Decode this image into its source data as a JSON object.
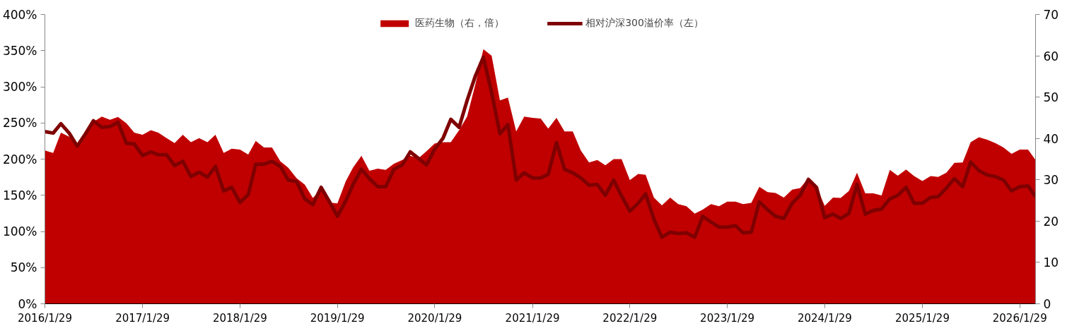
{
  "chart_data": {
    "type": "line",
    "x": [
      "2016-01",
      "2016-02",
      "2016-03",
      "2016-04",
      "2016-05",
      "2016-06",
      "2016-07",
      "2016-08",
      "2016-09",
      "2016-10",
      "2016-11",
      "2016-12",
      "2017-01",
      "2017-02",
      "2017-03",
      "2017-04",
      "2017-05",
      "2017-06",
      "2017-07",
      "2017-08",
      "2017-09",
      "2017-10",
      "2017-11",
      "2017-12",
      "2018-01",
      "2018-02",
      "2018-03",
      "2018-04",
      "2018-05",
      "2018-06",
      "2018-07",
      "2018-08",
      "2018-09",
      "2018-10",
      "2018-11",
      "2018-12",
      "2019-01",
      "2019-02",
      "2019-03",
      "2019-04",
      "2019-05",
      "2019-06",
      "2019-07",
      "2019-08",
      "2019-09",
      "2019-10",
      "2019-11",
      "2019-12",
      "2020-01",
      "2020-02",
      "2020-03",
      "2020-04",
      "2020-05",
      "2020-06",
      "2020-07",
      "2020-08",
      "2020-09",
      "2020-10",
      "2020-11",
      "2020-12",
      "2021-01",
      "2021-02",
      "2021-03",
      "2021-04",
      "2021-05",
      "2021-06",
      "2021-07",
      "2021-08",
      "2021-09",
      "2021-10",
      "2021-11",
      "2021-12",
      "2022-01",
      "2022-02",
      "2022-03",
      "2022-04",
      "2022-05",
      "2022-06",
      "2022-07",
      "2022-08",
      "2022-09",
      "2022-10",
      "2022-11",
      "2022-12",
      "2023-01",
      "2023-02",
      "2023-03",
      "2023-04",
      "2023-05",
      "2023-06",
      "2023-07",
      "2023-08",
      "2023-09",
      "2023-10",
      "2023-11",
      "2023-12",
      "2024-01",
      "2024-02",
      "2024-03",
      "2024-04",
      "2024-05",
      "2024-06",
      "2024-07",
      "2024-08",
      "2024-09",
      "2024-10",
      "2024-11",
      "2024-12",
      "2025-01",
      "2025-02",
      "2025-03",
      "2025-04",
      "2025-05",
      "2025-06",
      "2025-07",
      "2025-08",
      "2025-09",
      "2025-10",
      "2025-11",
      "2025-12",
      "2026-01",
      "2026-02",
      "2026-03"
    ],
    "series": [
      {
        "name": "医药生物（右，倍）",
        "type": "area",
        "axis": "y2",
        "color": "#c00000",
        "values": [
          37.1,
          36.5,
          41.4,
          40.4,
          38.8,
          41.4,
          44.0,
          45.3,
          44.5,
          45.2,
          43.7,
          41.4,
          40.9,
          42.0,
          41.4,
          40.1,
          38.9,
          40.9,
          39.1,
          40.1,
          39.1,
          40.9,
          36.5,
          37.5,
          37.3,
          36.1,
          39.4,
          37.8,
          37.8,
          34.5,
          32.9,
          30.4,
          28.8,
          25.6,
          27.6,
          24.5,
          24.3,
          29.6,
          33.0,
          35.8,
          32.2,
          32.7,
          32.4,
          33.9,
          34.8,
          35.8,
          35.2,
          36.9,
          38.8,
          39.1,
          39.1,
          42.0,
          45.3,
          53.1,
          61.6,
          60.0,
          49.2,
          49.9,
          41.7,
          45.3,
          45.0,
          44.8,
          42.4,
          45.0,
          41.7,
          41.7,
          37.1,
          34.2,
          34.8,
          33.5,
          35.0,
          35.0,
          29.9,
          31.4,
          31.2,
          25.7,
          23.8,
          25.7,
          24.1,
          23.6,
          21.8,
          22.8,
          24.1,
          23.6,
          24.7,
          24.7,
          24.1,
          24.4,
          28.3,
          27.0,
          26.8,
          25.7,
          27.6,
          28.0,
          30.4,
          28.3,
          23.7,
          25.7,
          25.6,
          27.3,
          31.7,
          26.7,
          26.7,
          26.2,
          32.4,
          31.0,
          32.5,
          30.9,
          29.7,
          30.9,
          30.7,
          31.7,
          34.1,
          34.2,
          39.1,
          40.3,
          39.7,
          38.9,
          37.8,
          36.3,
          37.3,
          37.3,
          34.8
        ]
      },
      {
        "name": "相对沪深300溢价率（左）",
        "color": "#7f0000",
        "values": [
          238,
          236,
          249,
          236,
          218,
          235,
          253,
          244,
          245,
          251,
          222,
          221,
          205,
          210,
          206,
          206,
          191,
          197,
          176,
          182,
          175,
          190,
          156,
          161,
          140,
          151,
          193,
          193,
          197,
          190,
          171,
          169,
          145,
          137,
          161,
          142,
          121,
          142,
          165,
          186,
          173,
          162,
          162,
          186,
          192,
          210,
          201,
          192,
          214,
          229,
          255,
          244,
          281,
          315,
          341,
          292,
          235,
          248,
          171,
          181,
          174,
          174,
          179,
          223,
          186,
          181,
          174,
          164,
          165,
          150,
          171,
          149,
          128,
          139,
          152,
          117,
          92,
          99,
          97,
          98,
          92,
          121,
          113,
          106,
          106,
          108,
          98,
          99,
          141,
          130,
          121,
          118,
          139,
          150,
          172,
          161,
          119,
          124,
          118,
          125,
          165,
          124,
          129,
          131,
          145,
          150,
          161,
          139,
          139,
          147,
          148,
          160,
          173,
          162,
          196,
          184,
          178,
          176,
          171,
          156,
          162,
          163,
          148
        ]
      }
    ],
    "xlim": [
      "2016-01",
      "2026-03"
    ],
    "xticks": [
      {
        "value": "2016-01",
        "label": "2016/1/29"
      },
      {
        "value": "2017-01",
        "label": "2017/1/29"
      },
      {
        "value": "2018-01",
        "label": "2018/1/29"
      },
      {
        "value": "2019-01",
        "label": "2019/1/29"
      },
      {
        "value": "2020-01",
        "label": "2020/1/29"
      },
      {
        "value": "2021-01",
        "label": "2021/1/29"
      },
      {
        "value": "2022-01",
        "label": "2022/1/29"
      },
      {
        "value": "2023-01",
        "label": "2023/1/29"
      },
      {
        "value": "2024-01",
        "label": "2024/1/29"
      },
      {
        "value": "2025-01",
        "label": "2025/1/29"
      },
      {
        "value": "2026-01",
        "label": "2026/1/29"
      }
    ],
    "ylim": [
      0,
      400
    ],
    "yticks": [
      {
        "value": 0,
        "label": "0%"
      },
      {
        "value": 50,
        "label": "50%"
      },
      {
        "value": 100,
        "label": "100%"
      },
      {
        "value": 150,
        "label": "150%"
      },
      {
        "value": 200,
        "label": "200%"
      },
      {
        "value": 250,
        "label": "250%"
      },
      {
        "value": 300,
        "label": "300%"
      },
      {
        "value": 350,
        "label": "350%"
      },
      {
        "value": 400,
        "label": "400%"
      }
    ],
    "y2lim": [
      0,
      70
    ],
    "y2ticks": [
      0,
      10,
      20,
      30,
      40,
      50,
      60,
      70
    ],
    "legend": "top",
    "grid": false
  }
}
